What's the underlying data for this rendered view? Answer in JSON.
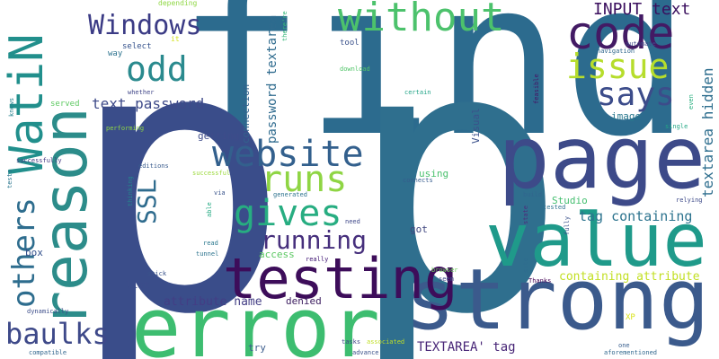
{
  "words": [
    {
      "text": "find",
      "color": "#2c6b8e"
    },
    {
      "text": "p",
      "color": "#3a4d8a"
    },
    {
      "text": "p",
      "color": "#2f6f8e"
    },
    {
      "text": "reason",
      "color": "#2c8c8a"
    },
    {
      "text": "strong",
      "color": "#3b5a8c"
    },
    {
      "text": "page",
      "color": "#3d4a89"
    },
    {
      "text": "value",
      "color": "#1f9a8a"
    },
    {
      "text": "error",
      "color": "#3dbd70"
    },
    {
      "text": "testing",
      "color": "#3d0d5a"
    },
    {
      "text": "without",
      "color": "#4cc26c"
    },
    {
      "text": "code",
      "color": "#431a64"
    },
    {
      "text": "WatiN",
      "color": "#218f8c"
    },
    {
      "text": "odd",
      "color": "#2a8a8e"
    },
    {
      "text": "Windows",
      "color": "#3b3b85"
    },
    {
      "text": "issue",
      "color": "#b6dd2c"
    },
    {
      "text": "says",
      "color": "#3c4c8a"
    },
    {
      "text": "website",
      "color": "#33608d"
    },
    {
      "text": "runs",
      "color": "#8fd544"
    },
    {
      "text": "gives",
      "color": "#27ad81"
    },
    {
      "text": "running",
      "color": "#462f7c"
    },
    {
      "text": "others",
      "color": "#2e6d8e"
    },
    {
      "text": "baulks",
      "color": "#3e4989"
    },
    {
      "text": "SSL",
      "color": "#2f6c8e"
    },
    {
      "text": "INPUT text",
      "color": "#3b0f5e"
    },
    {
      "text": "textarea hidden",
      "color": "#2e6e8e"
    },
    {
      "text": "tag containing",
      "color": "#2c738e"
    },
    {
      "text": "text password",
      "color": "#3e4a89"
    },
    {
      "text": "password textarea",
      "color": "#2f6b8e"
    },
    {
      "text": "attribute name",
      "color": "#433e85"
    },
    {
      "text": "containing attribute",
      "color": "#c2df23"
    },
    {
      "text": "TEXTAREA' tag",
      "color": "#482677"
    },
    {
      "text": "Visual",
      "color": "#3b518b"
    },
    {
      "text": "connection",
      "color": "#33628d"
    },
    {
      "text": "getting",
      "color": "#3e4c8a"
    },
    {
      "text": "Studio",
      "color": "#45bf70"
    },
    {
      "text": "image",
      "color": "#2a788e"
    },
    {
      "text": "using",
      "color": "#4ac16d"
    },
    {
      "text": "got",
      "color": "#40467f"
    },
    {
      "text": "access",
      "color": "#5cc863"
    },
    {
      "text": "denied",
      "color": "#3b1c5f"
    },
    {
      "text": "try",
      "color": "#3b5c8c"
    },
    {
      "text": "list",
      "color": "#3c4d8a"
    },
    {
      "text": "box",
      "color": "#33508c"
    },
    {
      "text": "select",
      "color": "#34518c"
    },
    {
      "text": "way",
      "color": "#2c728e"
    },
    {
      "text": "served",
      "color": "#5ec962"
    },
    {
      "text": "tool",
      "color": "#3b528b"
    },
    {
      "text": "XP",
      "color": "#d8e219"
    },
    {
      "text": "depending",
      "color": "#8fd744"
    },
    {
      "text": "it",
      "color": "#d2e21b"
    },
    {
      "text": "there're",
      "color": "#35b779"
    },
    {
      "text": "automate",
      "color": "#3f4788"
    },
    {
      "text": "navigation",
      "color": "#31688e"
    },
    {
      "text": "download",
      "color": "#52c569"
    },
    {
      "text": "certain",
      "color": "#20a386"
    },
    {
      "text": "whether",
      "color": "#404688"
    },
    {
      "text": "feasible",
      "color": "#471365"
    },
    {
      "text": "even",
      "color": "#29af7f"
    },
    {
      "text": "knows",
      "color": "#26828e"
    },
    {
      "text": "performing",
      "color": "#90d743"
    },
    {
      "text": "single",
      "color": "#22a884"
    },
    {
      "text": "successfully",
      "color": "#443983"
    },
    {
      "text": "editions",
      "color": "#375a8c"
    },
    {
      "text": "successful",
      "color": "#9bd93c"
    },
    {
      "text": "thinking",
      "color": "#25858e"
    },
    {
      "text": "via",
      "color": "#3a548c"
    },
    {
      "text": "generated",
      "color": "#2c728e"
    },
    {
      "text": "connects",
      "color": "#365c8d"
    },
    {
      "text": "build",
      "color": "#31668e"
    },
    {
      "text": "tested",
      "color": "#2d708e"
    },
    {
      "text": "state",
      "color": "#4d2d7c"
    },
    {
      "text": "fully",
      "color": "#3b528b"
    },
    {
      "text": "relying",
      "color": "#3e4a89"
    },
    {
      "text": "tests",
      "color": "#2a768e"
    },
    {
      "text": "able",
      "color": "#24aa83"
    },
    {
      "text": "need",
      "color": "#3f4889"
    },
    {
      "text": "read",
      "color": "#2a788e"
    },
    {
      "text": "tunnel",
      "color": "#2c738e"
    },
    {
      "text": "really",
      "color": "#3b0f70"
    },
    {
      "text": "stick",
      "color": "#3a538b"
    },
    {
      "text": "browser",
      "color": "#6ccd5a"
    },
    {
      "text": "seem",
      "color": "#3f4788"
    },
    {
      "text": "site",
      "color": "#2f6c8e"
    },
    {
      "text": "Thanks",
      "color": "#440154"
    },
    {
      "text": "dynamically",
      "color": "#3d4e8a"
    },
    {
      "text": "compatible",
      "color": "#31668e"
    },
    {
      "text": "tasks",
      "color": "#404588"
    },
    {
      "text": "associated",
      "color": "#c0df25"
    },
    {
      "text": "advance",
      "color": "#3b528b"
    },
    {
      "text": "one",
      "color": "#365d8d"
    },
    {
      "text": "aforementioned",
      "color": "#31688e"
    }
  ]
}
